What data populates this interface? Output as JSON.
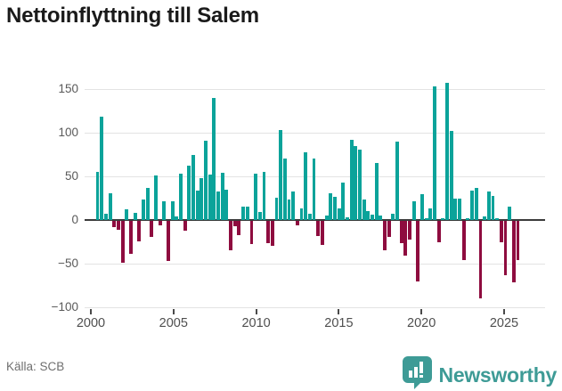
{
  "title": "Nettoinflyttning till Salem",
  "source": "Källa: SCB",
  "branding": {
    "wordmark": "Newsworthy",
    "accent": "#3e9b96"
  },
  "colors": {
    "positive_bar": "#0ba39a",
    "negative_bar": "#8e0c3f",
    "zero_axis": "#3b3b3b",
    "grid": "#e3e3e3",
    "tick_text": "#595959"
  },
  "chart_data": {
    "type": "bar",
    "title": "Nettoinflyttning till Salem",
    "frequency": "quarterly",
    "period_start": "2000Q1",
    "x_tick_labels": [
      "2000",
      "2005",
      "2010",
      "2015",
      "2020",
      "2025"
    ],
    "y_tick_labels": [
      "150",
      "100",
      "50",
      "0",
      "−50",
      "−100"
    ],
    "y_ticks": [
      150,
      100,
      50,
      0,
      -50,
      -100
    ],
    "ylim": [
      -100,
      160
    ],
    "grid": true,
    "values": [
      55,
      118,
      7,
      31,
      -7,
      -10,
      -48,
      12,
      -38,
      8,
      -23,
      23,
      37,
      -18,
      51,
      -5,
      21,
      -46,
      21,
      4,
      53,
      -11,
      62,
      75,
      34,
      48,
      91,
      52,
      140,
      33,
      54,
      35,
      -34,
      -6,
      -16,
      15,
      15,
      -27,
      53,
      9,
      55,
      -25,
      -29,
      26,
      103,
      70,
      23,
      33,
      -5,
      13,
      78,
      7,
      70,
      -17,
      -28,
      5,
      31,
      27,
      13,
      43,
      3,
      92,
      85,
      81,
      23,
      10,
      6,
      65,
      5,
      -34,
      -18,
      7,
      90,
      -25,
      -40,
      -21,
      21,
      -69,
      30,
      2,
      13,
      153,
      -24,
      2,
      157,
      102,
      24,
      24,
      -45,
      2,
      34,
      37,
      -89,
      4,
      33,
      28,
      2,
      -24,
      -62,
      15,
      -70,
      -45
    ]
  }
}
